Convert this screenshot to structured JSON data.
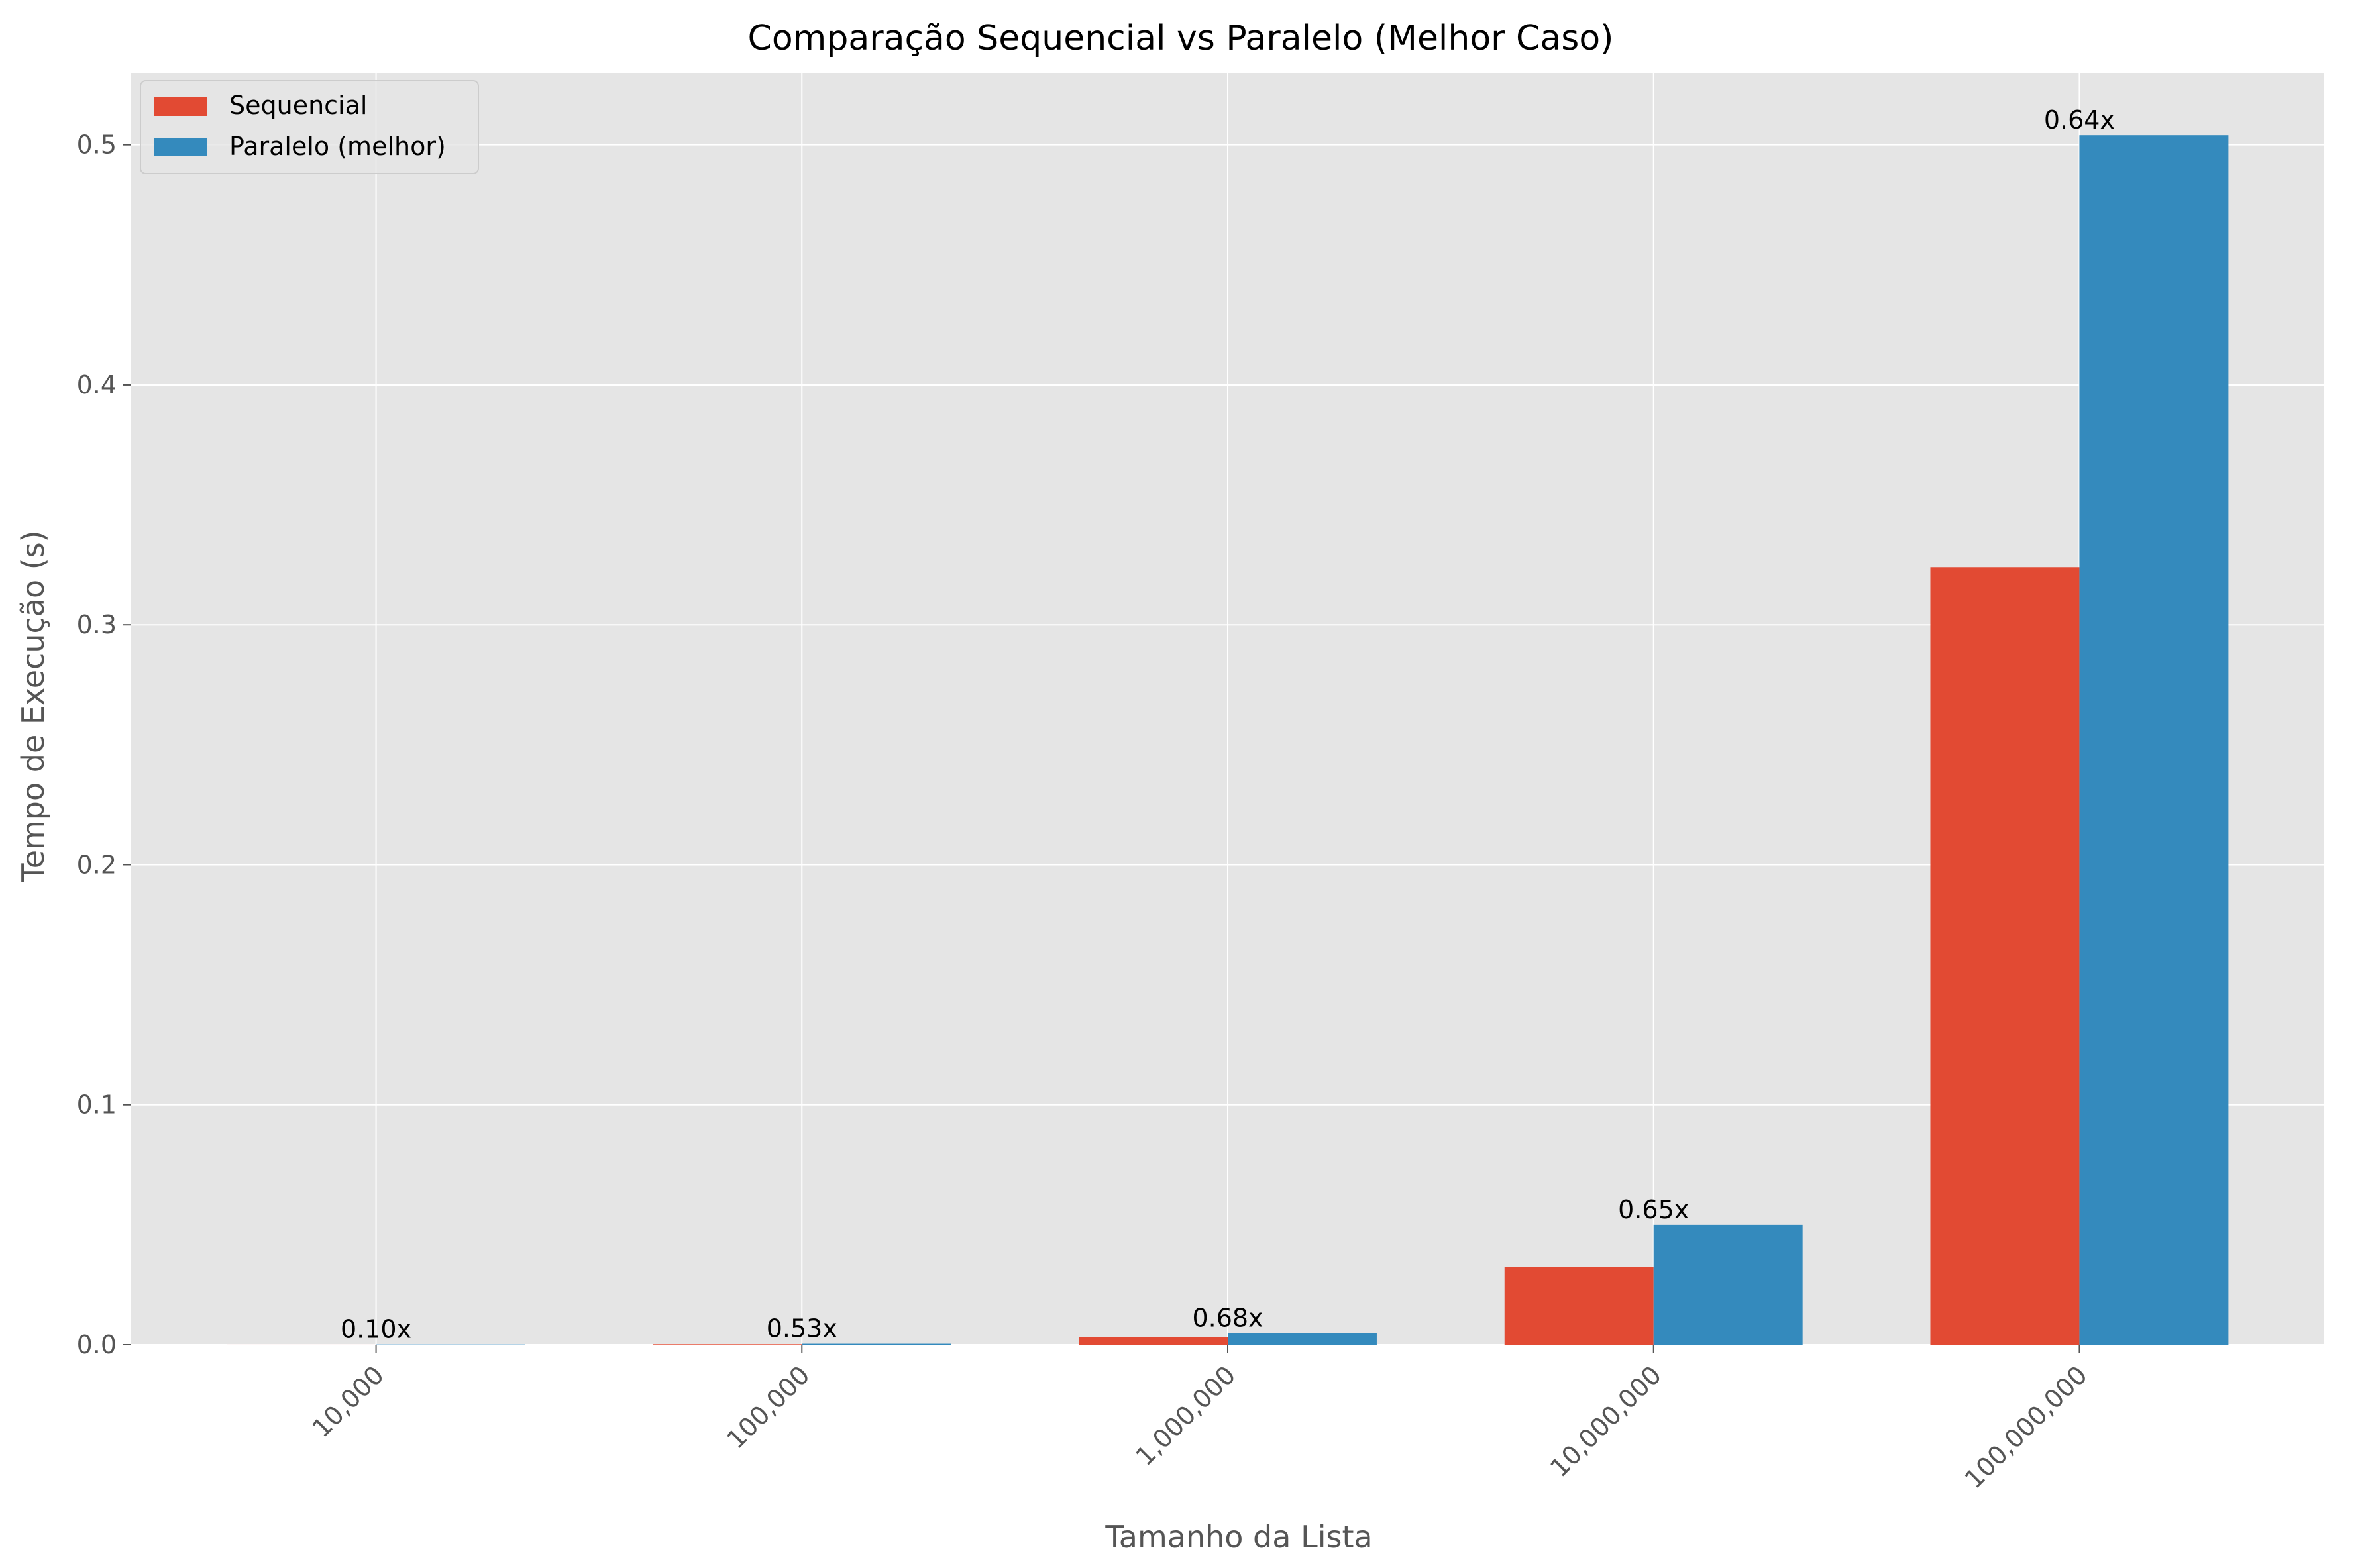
{
  "chart_data": {
    "type": "bar",
    "title": "Comparação Sequencial vs Paralelo (Melhor Caso)",
    "xlabel": "Tamanho da Lista",
    "ylabel": "Tempo de Execução (s)",
    "categories": [
      "10,000",
      "100,000",
      "1,000,000",
      "10,000,000",
      "100,000,000"
    ],
    "series": [
      {
        "name": "Sequencial",
        "color": "#E24A33",
        "values": [
          1e-05,
          0.0002,
          0.0033,
          0.0325,
          0.324
        ]
      },
      {
        "name": "Paralelo (melhor)",
        "color": "#348ABD",
        "values": [
          0.0001,
          0.0004,
          0.0048,
          0.05,
          0.504
        ]
      }
    ],
    "bar_labels": [
      "0.10x",
      "0.53x",
      "0.68x",
      "0.65x",
      "0.64x"
    ],
    "ylim": [
      0,
      0.53
    ],
    "yticks": [
      0.0,
      0.1,
      0.2,
      0.3,
      0.4,
      0.5
    ],
    "ytick_labels": [
      "0.0",
      "0.1",
      "0.2",
      "0.3",
      "0.4",
      "0.5"
    ],
    "grid": true,
    "legend_position": "top-left",
    "background_color": "#E5E5E5",
    "grid_color": "#FFFFFF"
  }
}
